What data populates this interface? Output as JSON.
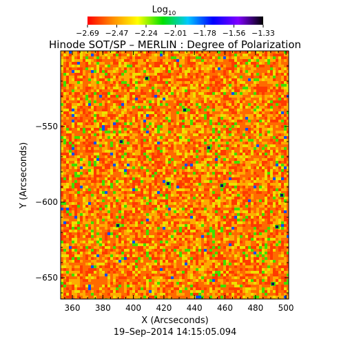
{
  "figure": {
    "title": "Hinode SOT/SP – MERLIN : Degree of Polarization",
    "timestamp": "19–Sep–2014 14:15:05.094",
    "colorbar": {
      "label_main": "Log",
      "label_sub": "10",
      "tick_labels": [
        "−2.69",
        "−2.47",
        "−2.24",
        "−2.01",
        "−1.78",
        "−1.56",
        "−1.33"
      ],
      "colors": [
        "#ff0000",
        "#ff8c00",
        "#ffff00",
        "#00e000",
        "#00c8ff",
        "#0000ff",
        "#8000ff",
        "#000000"
      ]
    },
    "axes": {
      "xlabel": "X (Arcseconds)",
      "ylabel": "Y (Arcseconds)",
      "x_tick_labels": [
        "360",
        "380",
        "400",
        "420",
        "440",
        "460",
        "480",
        "500"
      ],
      "y_tick_labels": [
        "−550",
        "−600",
        "−650"
      ]
    },
    "map_palette": {
      "base": "#ff6a00",
      "warm": "#ff3a00",
      "bright": "#ffaa00",
      "yellow": "#f0e000",
      "green": "#40e000",
      "blue": "#0050ff",
      "dark": "#101060"
    }
  }
}
